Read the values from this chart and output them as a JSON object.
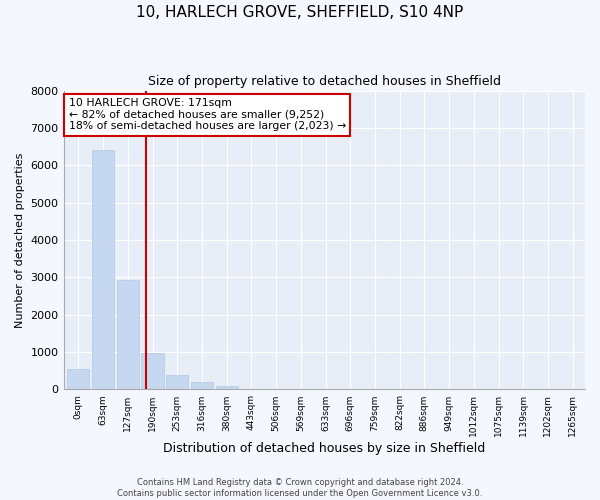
{
  "title": "10, HARLECH GROVE, SHEFFIELD, S10 4NP",
  "subtitle": "Size of property relative to detached houses in Sheffield",
  "xlabel": "Distribution of detached houses by size in Sheffield",
  "ylabel": "Number of detached properties",
  "bar_labels": [
    "0sqm",
    "63sqm",
    "127sqm",
    "190sqm",
    "253sqm",
    "316sqm",
    "380sqm",
    "443sqm",
    "506sqm",
    "569sqm",
    "633sqm",
    "696sqm",
    "759sqm",
    "822sqm",
    "886sqm",
    "949sqm",
    "1012sqm",
    "1075sqm",
    "1139sqm",
    "1202sqm",
    "1265sqm"
  ],
  "bar_values": [
    560,
    6420,
    2930,
    980,
    390,
    190,
    80,
    20,
    0,
    0,
    0,
    0,
    0,
    0,
    0,
    0,
    0,
    0,
    0,
    0,
    0
  ],
  "bar_color": "#c5d8f0",
  "bar_edge_color": "#b0c8e8",
  "vline_x": 2.73,
  "vline_color": "#cc0000",
  "ylim": [
    0,
    8000
  ],
  "yticks": [
    0,
    1000,
    2000,
    3000,
    4000,
    5000,
    6000,
    7000,
    8000
  ],
  "annotation_title": "10 HARLECH GROVE: 171sqm",
  "annotation_line1": "← 82% of detached houses are smaller (9,252)",
  "annotation_line2": "18% of semi-detached houses are larger (2,023) →",
  "annotation_box_facecolor": "#ffffff",
  "annotation_box_edge": "#cc0000",
  "footer1": "Contains HM Land Registry data © Crown copyright and database right 2024.",
  "footer2": "Contains public sector information licensed under the Open Government Licence v3.0.",
  "plot_bg_color": "#e8eef8",
  "fig_bg_color": "#f5f7ff",
  "grid_color": "#ffffff",
  "fig_width": 6.0,
  "fig_height": 5.0,
  "dpi": 100
}
